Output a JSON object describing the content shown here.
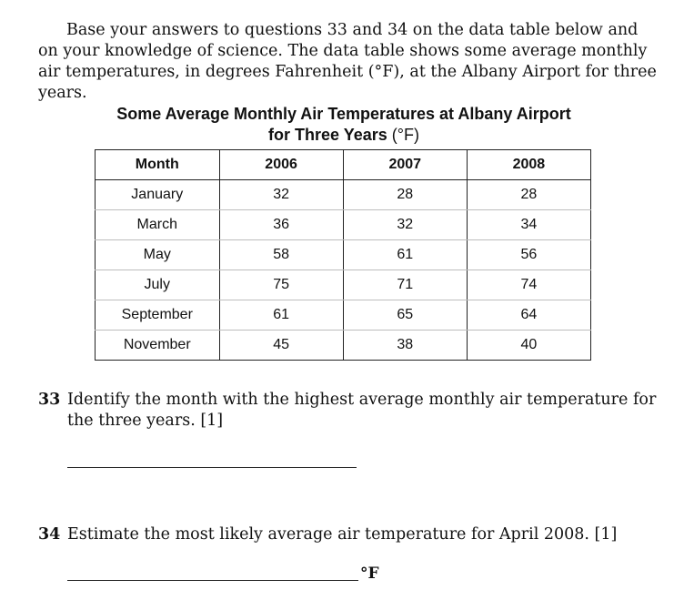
{
  "intro": {
    "lines": [
      "Base your answers to questions 33 and 34 on the data table below and",
      "on your knowledge of science. The data table shows some average monthly",
      "air temperatures, in degrees Fahrenheit (°F), at the Albany Airport for three",
      "years."
    ]
  },
  "table": {
    "title_line1": "Some Average Monthly Air Temperatures at Albany Airport",
    "title_line2": "for Three Years",
    "title_unit": "(°F)",
    "headers": [
      "Month",
      "2006",
      "2007",
      "2008"
    ],
    "rows": [
      [
        "January",
        "32",
        "28",
        "28"
      ],
      [
        "March",
        "36",
        "32",
        "34"
      ],
      [
        "May",
        "58",
        "61",
        "56"
      ],
      [
        "July",
        "75",
        "71",
        "74"
      ],
      [
        "September",
        "61",
        "65",
        "64"
      ],
      [
        "November",
        "45",
        "38",
        "40"
      ]
    ]
  },
  "q33": {
    "number": "33",
    "line1": "Identify the month with the highest average monthly air temperature for",
    "line2": "the three years.  [1]"
  },
  "q34": {
    "number": "34",
    "text": "Estimate the most likely average air temperature for April 2008.  [1]",
    "unit": "°F"
  }
}
